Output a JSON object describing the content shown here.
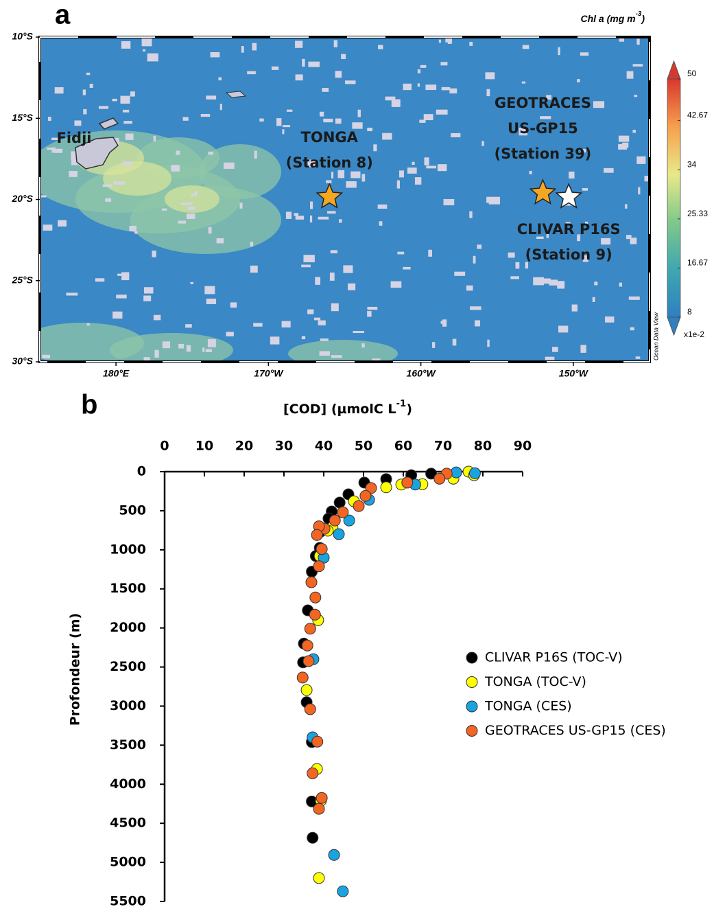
{
  "chart_data": [
    {
      "type": "map",
      "panel_label": "a",
      "title": {
        "text": "Chl a (mg m",
        "sup": "-3",
        "end": ")"
      },
      "xlim": [
        175,
        215
      ],
      "ylim": [
        -30,
        -10
      ],
      "xticks": [
        {
          "value": 180,
          "label": "180°E"
        },
        {
          "value": 190,
          "label": "170°W"
        },
        {
          "value": 200,
          "label": "160°W"
        },
        {
          "value": 210,
          "label": "150°W"
        }
      ],
      "yticks": [
        {
          "value": -10,
          "label": "10°S"
        },
        {
          "value": -15,
          "label": "15°S"
        },
        {
          "value": -20,
          "label": "20°S"
        },
        {
          "value": -25,
          "label": "25°S"
        },
        {
          "value": -30,
          "label": "30°S"
        }
      ],
      "place_labels": [
        "Fidji"
      ],
      "markers": [
        {
          "label": [
            "TONGA",
            "(Station 8)"
          ],
          "lon": 194,
          "lat": -19.85,
          "color": "#f5a623"
        },
        {
          "label": [
            "GEOTRACES",
            "US-GP15",
            "(Station 39)"
          ],
          "lon": 208,
          "lat": -19.6,
          "color": "#f5a623"
        },
        {
          "label": [
            "CLIVAR P16S",
            "(Station 9)"
          ],
          "lon": 209.7,
          "lat": -19.85,
          "color": "#ffffff"
        }
      ],
      "colorbar": {
        "lim": [
          8,
          50
        ],
        "ticks": [
          8,
          16.67,
          25.33,
          34,
          42.67,
          50
        ],
        "unit": "x1e-2",
        "colors": [
          "#2f7fc1",
          "#3fa7b0",
          "#7fc98a",
          "#e8e98a",
          "#f6a04d",
          "#d7382e"
        ]
      },
      "credit": "Ocean Data View"
    },
    {
      "type": "scatter",
      "panel_label": "b",
      "title": {
        "text": "[COD] (µmolC L",
        "sup": "-1",
        "end": ")"
      },
      "y_label": "Profondeur (m)",
      "xlim": [
        0,
        90
      ],
      "ylim": [
        0,
        5500
      ],
      "y_inverted": true,
      "xticks": [
        0,
        10,
        20,
        30,
        40,
        50,
        60,
        70,
        80,
        90
      ],
      "yticks": [
        0,
        500,
        1000,
        1500,
        2000,
        2500,
        3000,
        3500,
        4000,
        4500,
        5000,
        5500
      ],
      "series": [
        {
          "name": "CLIVAR P16S (TOC-V)",
          "color": "#000000",
          "x": [
            62,
            67,
            55.7,
            50.2,
            46.2,
            44,
            42,
            41.2,
            39,
            39,
            38,
            37,
            36,
            35,
            34.8,
            35.7,
            37,
            37,
            37.2
          ],
          "y": [
            45,
            25,
            95,
            140,
            290,
            395,
            510,
            600,
            775,
            975,
            1080,
            1280,
            1775,
            2200,
            2440,
            2950,
            3460,
            4220,
            4685
          ]
        },
        {
          "name": "TONGA (TOC-V)",
          "color": "#ffff00",
          "x": [
            76.4,
            77.8,
            72.6,
            64.8,
            59.5,
            55.7,
            47.6,
            42.2,
            41,
            39,
            38.6,
            35.7,
            38.3,
            39.3,
            38.8
          ],
          "y": [
            0,
            45,
            90,
            160,
            165,
            200,
            380,
            710,
            755,
            1080,
            1900,
            2795,
            3805,
            4210,
            5200
          ]
        },
        {
          "name": "TONGA (CES)",
          "color": "#1aa3e0",
          "x": [
            78,
            73.3,
            63,
            51.4,
            46.4,
            43.8,
            40,
            37.4,
            37.2,
            42.6,
            44.8
          ],
          "y": [
            20,
            10,
            165,
            360,
            625,
            800,
            1100,
            2400,
            3400,
            4905,
            5370
          ]
        },
        {
          "name": "GEOTRACES US-GP15 (CES)",
          "color": "#f26522",
          "x": [
            70.9,
            69.1,
            61,
            51.9,
            50.5,
            48.8,
            44.8,
            42.8,
            40.2,
            38.8,
            38.3,
            39.5,
            38.8,
            36.9,
            37.9,
            37.8,
            36.6,
            35.9,
            36.2,
            34.7,
            36.6,
            38.4,
            37.2,
            39.5,
            38.8
          ],
          "y": [
            25,
            90,
            140,
            210,
            310,
            440,
            520,
            625,
            730,
            700,
            810,
            990,
            1210,
            1415,
            1610,
            1830,
            2010,
            2225,
            2425,
            2635,
            3040,
            3455,
            3860,
            4175,
            4315
          ]
        }
      ]
    }
  ]
}
